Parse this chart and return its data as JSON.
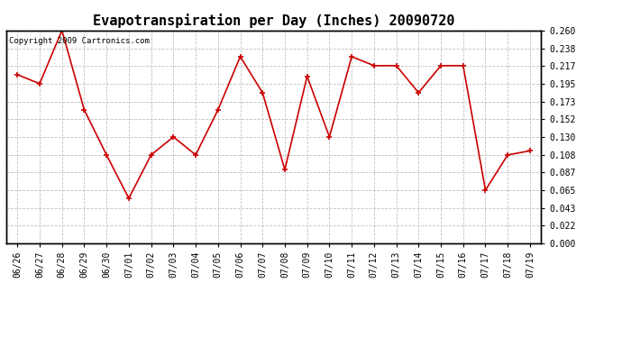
{
  "title": "Evapotranspiration per Day (Inches) 20090720",
  "copyright_text": "Copyright 2009 Cartronics.com",
  "x_labels": [
    "06/26",
    "06/27",
    "06/28",
    "06/29",
    "06/30",
    "07/01",
    "07/02",
    "07/03",
    "07/04",
    "07/05",
    "07/06",
    "07/07",
    "07/08",
    "07/09",
    "07/10",
    "07/11",
    "07/12",
    "07/13",
    "07/14",
    "07/15",
    "07/16",
    "07/17",
    "07/18",
    "07/19"
  ],
  "y_values": [
    0.206,
    0.195,
    0.26,
    0.163,
    0.108,
    0.055,
    0.108,
    0.13,
    0.108,
    0.163,
    0.228,
    0.184,
    0.09,
    0.204,
    0.13,
    0.228,
    0.217,
    0.217,
    0.184,
    0.217,
    0.217,
    0.065,
    0.108,
    0.113
  ],
  "line_color": "#cc0000",
  "marker_color": "#cc0000",
  "bg_color": "#ffffff",
  "grid_color": "#c0c0c0",
  "y_min": 0.0,
  "y_max": 0.26,
  "y_ticks": [
    0.0,
    0.022,
    0.043,
    0.065,
    0.087,
    0.108,
    0.13,
    0.152,
    0.173,
    0.195,
    0.217,
    0.238,
    0.26
  ],
  "title_fontsize": 11,
  "tick_fontsize": 7,
  "copyright_fontsize": 6.5
}
